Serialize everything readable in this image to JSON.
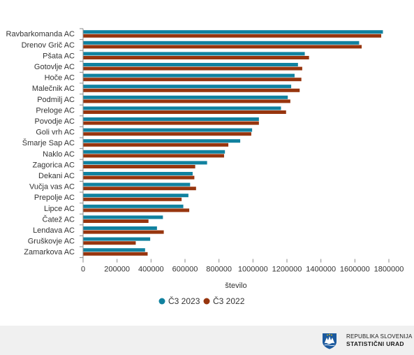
{
  "chart_data": {
    "type": "bar",
    "orientation": "horizontal",
    "title": "",
    "xlabel": "število",
    "ylabel": "",
    "xlim": [
      0,
      1800000
    ],
    "ticks": [
      "0",
      "200000",
      "400000",
      "600000",
      "800000",
      "1000000",
      "1200000",
      "1400000",
      "1600000",
      "1800000"
    ],
    "tick_values": [
      0,
      200000,
      400000,
      600000,
      800000,
      1000000,
      1200000,
      1400000,
      1600000,
      1800000
    ],
    "legend_position": "bottom-center",
    "grid": false,
    "categories": [
      "Ravbarkomanda AC",
      "Drenov Grič AC",
      "Pšata AC",
      "Gotovlje AC",
      "Hoče AC",
      "Malečnik AC",
      "Podmilj AC",
      "Preloge AC",
      "Povodje AC",
      "Goli vrh AC",
      "Šmarje Sap AC",
      "Naklo AC",
      "Zagorica AC",
      "Dekani AC",
      "Vučja vas AC",
      "Prepolje AC",
      "Lipce AC",
      "Čatež AC",
      "Lendava AC",
      "Gruškovje AC",
      "Zamarkova AC"
    ],
    "series": [
      {
        "name": "Č3 2023",
        "color": "#10819f",
        "values": [
          1765000,
          1625000,
          1305000,
          1265000,
          1245000,
          1225000,
          1205000,
          1165000,
          1035000,
          995000,
          925000,
          835000,
          730000,
          645000,
          630000,
          620000,
          590000,
          470000,
          435000,
          395000,
          365000
        ]
      },
      {
        "name": "Č3 2022",
        "color": "#97350e",
        "values": [
          1755000,
          1640000,
          1330000,
          1290000,
          1285000,
          1275000,
          1220000,
          1195000,
          1035000,
          990000,
          855000,
          830000,
          660000,
          655000,
          665000,
          580000,
          625000,
          385000,
          475000,
          310000,
          380000
        ]
      }
    ]
  },
  "footer": {
    "org_line1": "REPUBLIKA SLOVENIJA",
    "org_line2": "STATISTIČNI URAD",
    "logo_icon": "slovenia-coat-of-arms-icon"
  }
}
